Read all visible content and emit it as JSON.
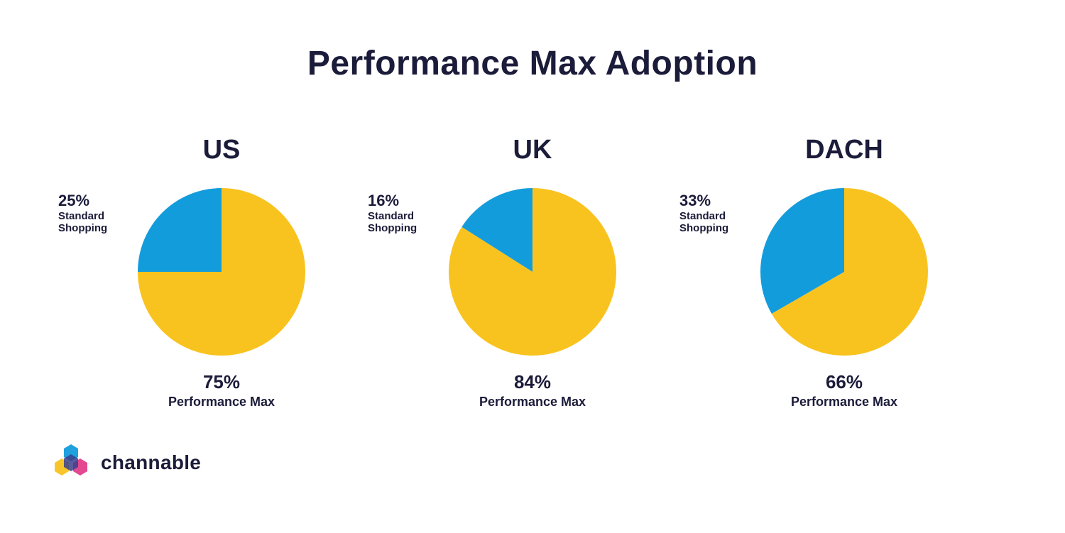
{
  "title": "Performance Max Adoption",
  "colors": {
    "performance_max": "#f9c31f",
    "standard_shopping": "#139cdb",
    "text": "#1b1b3a"
  },
  "chart_data": [
    {
      "type": "pie",
      "title": "US",
      "slices": [
        {
          "label": "Standard Shopping",
          "value": 25,
          "value_label": "25%",
          "color": "#139cdb"
        },
        {
          "label": "Performance Max",
          "value": 75,
          "value_label": "75%",
          "color": "#f9c31f"
        }
      ]
    },
    {
      "type": "pie",
      "title": "UK",
      "slices": [
        {
          "label": "Standard Shopping",
          "value": 16,
          "value_label": "16%",
          "color": "#139cdb"
        },
        {
          "label": "Performance Max",
          "value": 84,
          "value_label": "84%",
          "color": "#f9c31f"
        }
      ]
    },
    {
      "type": "pie",
      "title": "DACH",
      "slices": [
        {
          "label": "Standard Shopping",
          "value": 33,
          "value_label": "33%",
          "color": "#139cdb"
        },
        {
          "label": "Performance Max",
          "value": 66,
          "value_label": "66%",
          "color": "#f9c31f"
        }
      ]
    }
  ],
  "labels": {
    "standard_line1": "Standard",
    "standard_line2": "Shopping",
    "performance_max": "Performance Max"
  },
  "brand": {
    "name": "channable",
    "logo_icon": "channable-hexagon-logo"
  }
}
